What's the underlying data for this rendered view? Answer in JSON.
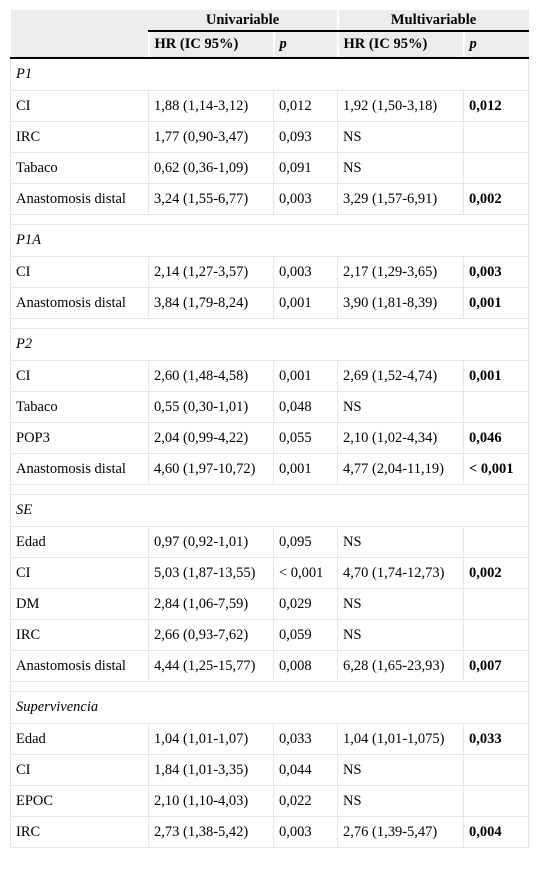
{
  "header": {
    "group_univariable": "Univariable",
    "group_multivariable": "Multivariable",
    "col_hr_uni": "HR (IC 95%)",
    "col_p_uni": "p",
    "col_hr_multi": "HR (IC 95%)",
    "col_p_multi": "p"
  },
  "sections": [
    {
      "title": "P1",
      "rows": [
        {
          "var": "CI",
          "hr_uni": "1,88 (1,14-3,12)",
          "p_uni": "0,012",
          "hr_multi": "1,92 (1,50-3,18)",
          "p_multi": "0,012"
        },
        {
          "var": "IRC",
          "hr_uni": "1,77 (0,90-3,47)",
          "p_uni": "0,093",
          "hr_multi": "NS",
          "p_multi": ""
        },
        {
          "var": "Tabaco",
          "hr_uni": "0,62 (0,36-1,09)",
          "p_uni": "0,091",
          "hr_multi": "NS",
          "p_multi": ""
        },
        {
          "var": "Anastomosis distal",
          "hr_uni": "3,24 (1,55-6,77)",
          "p_uni": "0,003",
          "hr_multi": "3,29 (1,57-6,91)",
          "p_multi": "0,002"
        }
      ]
    },
    {
      "title": "P1A",
      "rows": [
        {
          "var": "CI",
          "hr_uni": "2,14 (1,27-3,57)",
          "p_uni": "0,003",
          "hr_multi": "2,17 (1,29-3,65)",
          "p_multi": "0,003"
        },
        {
          "var": "Anastomosis distal",
          "hr_uni": "3,84 (1,79-8,24)",
          "p_uni": "0,001",
          "hr_multi": "3,90 (1,81-8,39)",
          "p_multi": "0,001"
        }
      ]
    },
    {
      "title": "P2",
      "rows": [
        {
          "var": "CI",
          "hr_uni": "2,60 (1,48-4,58)",
          "p_uni": "0,001",
          "hr_multi": "2,69 (1,52-4,74)",
          "p_multi": "0,001"
        },
        {
          "var": "Tabaco",
          "hr_uni": "0,55 (0,30-1,01)",
          "p_uni": "0,048",
          "hr_multi": "NS",
          "p_multi": ""
        },
        {
          "var": "POP3",
          "hr_uni": "2,04 (0,99-4,22)",
          "p_uni": "0,055",
          "hr_multi": "2,10 (1,02-4,34)",
          "p_multi": "0,046"
        },
        {
          "var": "Anastomosis distal",
          "hr_uni": "4,60 (1,97-10,72)",
          "p_uni": "0,001",
          "hr_multi": "4,77 (2,04-11,19)",
          "p_multi": "< 0,001"
        }
      ]
    },
    {
      "title": "SE",
      "rows": [
        {
          "var": "Edad",
          "hr_uni": "0,97 (0,92-1,01)",
          "p_uni": "0,095",
          "hr_multi": "NS",
          "p_multi": ""
        },
        {
          "var": "CI",
          "hr_uni": "5,03 (1,87-13,55)",
          "p_uni": "< 0,001",
          "hr_multi": "4,70 (1,74-12,73)",
          "p_multi": "0,002"
        },
        {
          "var": "DM",
          "hr_uni": "2,84 (1,06-7,59)",
          "p_uni": "0,029",
          "hr_multi": "NS",
          "p_multi": ""
        },
        {
          "var": "IRC",
          "hr_uni": "2,66 (0,93-7,62)",
          "p_uni": "0,059",
          "hr_multi": "NS",
          "p_multi": ""
        },
        {
          "var": "Anastomosis distal",
          "hr_uni": "4,44 (1,25-15,77)",
          "p_uni": "0,008",
          "hr_multi": "6,28 (1,65-23,93)",
          "p_multi": "0,007"
        }
      ]
    },
    {
      "title": "Supervivencia",
      "rows": [
        {
          "var": "Edad",
          "hr_uni": "1,04 (1,01-1,07)",
          "p_uni": "0,033",
          "hr_multi": "1,04 (1,01-1,075)",
          "p_multi": "0,033"
        },
        {
          "var": "CI",
          "hr_uni": "1,84 (1,01-3,35)",
          "p_uni": "0,044",
          "hr_multi": "NS",
          "p_multi": ""
        },
        {
          "var": "EPOC",
          "hr_uni": "2,10 (1,10-4,03)",
          "p_uni": "0,022",
          "hr_multi": "NS",
          "p_multi": ""
        },
        {
          "var": "IRC",
          "hr_uni": "2,73 (1,38-5,42)",
          "p_uni": "0,003",
          "hr_multi": "2,76 (1,39-5,47)",
          "p_multi": "0,004"
        }
      ]
    }
  ]
}
